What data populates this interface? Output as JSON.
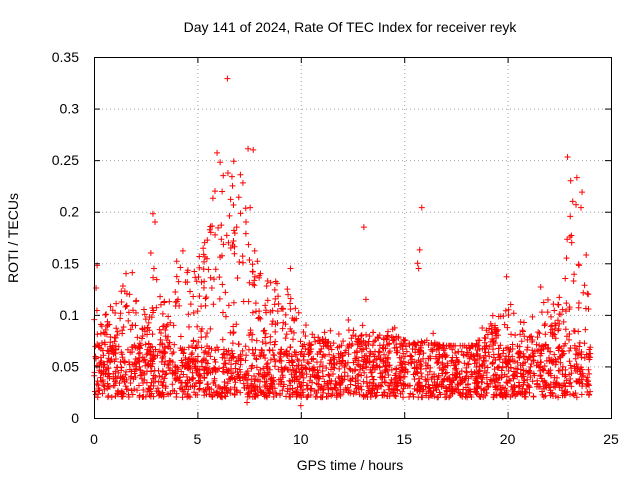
{
  "chart_data": {
    "type": "scatter",
    "title": "Day 141 of 2024, Rate Of TEC Index for receiver reyk",
    "xlabel": "GPS time / hours",
    "ylabel": "ROTI / TECUs",
    "xlim": [
      0,
      25
    ],
    "ylim": [
      0,
      0.35
    ],
    "x_ticks": [
      0,
      5,
      10,
      15,
      20,
      25
    ],
    "x_tick_labels": [
      "0",
      "5",
      "10",
      "15",
      "20",
      "25"
    ],
    "y_ticks": [
      0,
      0.05,
      0.1,
      0.15,
      0.2,
      0.25,
      0.3,
      0.35
    ],
    "y_tick_labels": [
      "0",
      "0.05",
      "0.1",
      "0.15",
      "0.2",
      "0.25",
      "0.3",
      "0.35"
    ],
    "grid": true,
    "marker": "+",
    "marker_color": "#ff0000",
    "series": [
      {
        "name": "ROTI",
        "baseline": {
          "x_range": [
            0,
            24
          ],
          "typical_range": [
            0.02,
            0.07
          ]
        },
        "envelope_hours": [
          0,
          0.5,
          1,
          1.5,
          2,
          2.5,
          3,
          3.5,
          4,
          4.5,
          5,
          5.5,
          6,
          6.5,
          7,
          7.5,
          8,
          8.5,
          9,
          9.5,
          10,
          10.5,
          11,
          11.5,
          12,
          12.5,
          13,
          13.5,
          14,
          14.5,
          15,
          15.5,
          16,
          16.5,
          17,
          17.5,
          18,
          18.5,
          19,
          19.5,
          20,
          20.5,
          21,
          21.5,
          22,
          22.5,
          23,
          23.5,
          24
        ],
        "envelope_upper": [
          0.12,
          0.1,
          0.11,
          0.13,
          0.14,
          0.12,
          0.15,
          0.11,
          0.14,
          0.16,
          0.15,
          0.19,
          0.25,
          0.24,
          0.26,
          0.21,
          0.16,
          0.14,
          0.13,
          0.12,
          0.1,
          0.09,
          0.085,
          0.085,
          0.09,
          0.09,
          0.09,
          0.085,
          0.085,
          0.09,
          0.08,
          0.075,
          0.08,
          0.075,
          0.07,
          0.065,
          0.07,
          0.075,
          0.1,
          0.1,
          0.11,
          0.1,
          0.09,
          0.1,
          0.12,
          0.14,
          0.22,
          0.21,
          0.1
        ],
        "points": [
          [
            6.45,
            0.329
          ],
          [
            5.95,
            0.257
          ],
          [
            6.1,
            0.248
          ],
          [
            7.45,
            0.261
          ],
          [
            7.7,
            0.26
          ],
          [
            22.9,
            0.253
          ],
          [
            5.75,
            0.213
          ],
          [
            5.85,
            0.22
          ],
          [
            6.25,
            0.235
          ],
          [
            6.7,
            0.225
          ],
          [
            7.0,
            0.214
          ],
          [
            7.2,
            0.228
          ],
          [
            7.55,
            0.204
          ],
          [
            2.85,
            0.198
          ],
          [
            2.95,
            0.19
          ],
          [
            23.05,
            0.23
          ],
          [
            23.35,
            0.233
          ],
          [
            23.6,
            0.219
          ],
          [
            23.15,
            0.21
          ],
          [
            23.55,
            0.204
          ],
          [
            15.85,
            0.204
          ],
          [
            13.05,
            0.185
          ],
          [
            15.75,
            0.163
          ],
          [
            15.65,
            0.15
          ],
          [
            15.7,
            0.145
          ],
          [
            13.15,
            0.115
          ],
          [
            19.95,
            0.137
          ],
          [
            0.15,
            0.148
          ],
          [
            4.3,
            0.162
          ],
          [
            4.0,
            0.152
          ],
          [
            2.75,
            0.16
          ],
          [
            2.9,
            0.145
          ],
          [
            1.85,
            0.141
          ],
          [
            1.55,
            0.14
          ],
          [
            1.4,
            0.128
          ],
          [
            0.1,
            0.126
          ],
          [
            0.55,
            0.1
          ],
          [
            0.8,
            0.108
          ],
          [
            4.85,
            0.142
          ],
          [
            5.35,
            0.17
          ],
          [
            5.65,
            0.18
          ],
          [
            6.55,
            0.196
          ],
          [
            6.9,
            0.185
          ],
          [
            7.35,
            0.19
          ],
          [
            7.9,
            0.152
          ],
          [
            8.05,
            0.14
          ],
          [
            8.35,
            0.128
          ],
          [
            8.9,
            0.118
          ],
          [
            9.5,
            0.145
          ],
          [
            9.35,
            0.125
          ],
          [
            9.9,
            0.102
          ],
          [
            10.25,
            0.09
          ],
          [
            11.15,
            0.083
          ],
          [
            12.3,
            0.095
          ],
          [
            12.55,
            0.085
          ],
          [
            13.5,
            0.083
          ],
          [
            14.2,
            0.08
          ],
          [
            14.8,
            0.072
          ],
          [
            16.4,
            0.082
          ],
          [
            17.3,
            0.07
          ],
          [
            18.2,
            0.068
          ],
          [
            18.9,
            0.073
          ],
          [
            19.4,
            0.082
          ],
          [
            20.05,
            0.105
          ],
          [
            20.15,
            0.11
          ],
          [
            21.2,
            0.098
          ],
          [
            21.6,
            0.127
          ],
          [
            21.75,
            0.112
          ],
          [
            22.1,
            0.098
          ],
          [
            22.5,
            0.117
          ],
          [
            22.85,
            0.155
          ],
          [
            23.1,
            0.17
          ],
          [
            23.45,
            0.148
          ],
          [
            23.8,
            0.158
          ],
          [
            23.9,
            0.12
          ],
          [
            6.3,
            0.03
          ],
          [
            7.4,
            0.015
          ],
          [
            10.0,
            0.012
          ],
          [
            8.8,
            0.024
          ],
          [
            11.8,
            0.027
          ]
        ]
      }
    ]
  }
}
